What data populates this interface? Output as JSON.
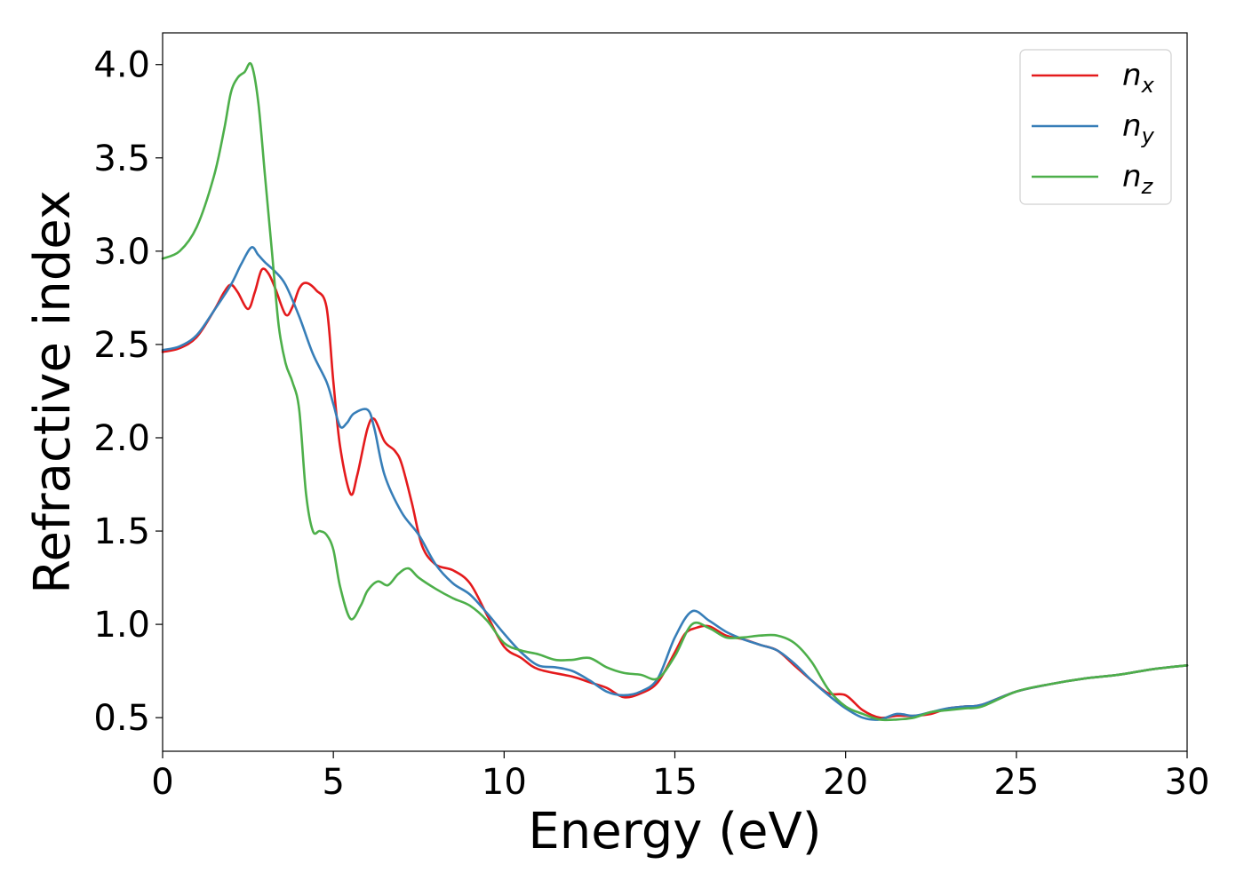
{
  "chart_data": {
    "type": "line",
    "xlabel": "Energy (eV)",
    "ylabel": "Refractive index",
    "xlim": [
      0,
      30
    ],
    "ylim": [
      0.32,
      4.17
    ],
    "xticks": [
      0,
      5,
      10,
      15,
      20,
      25,
      30
    ],
    "xtick_labels": [
      "0",
      "5",
      "10",
      "15",
      "20",
      "25",
      "30"
    ],
    "yticks": [
      0.5,
      1.0,
      1.5,
      2.0,
      2.5,
      3.0,
      3.5,
      4.0
    ],
    "ytick_labels": [
      "0.5",
      "1.0",
      "1.5",
      "2.0",
      "2.5",
      "3.0",
      "3.5",
      "4.0"
    ],
    "grid": false,
    "legend_position": "top-right",
    "series": [
      {
        "name": "n_x",
        "label_base": "n",
        "label_sub": "x",
        "color": "#e41a1c",
        "x": [
          0,
          0.5,
          1.0,
          1.5,
          1.8,
          2.0,
          2.2,
          2.5,
          2.7,
          2.9,
          3.1,
          3.3,
          3.6,
          3.8,
          4.0,
          4.2,
          4.5,
          4.8,
          5.0,
          5.2,
          5.5,
          5.7,
          6.0,
          6.2,
          6.5,
          6.8,
          7.0,
          7.3,
          7.6,
          8.0,
          8.5,
          9.0,
          9.5,
          10.0,
          10.5,
          11.0,
          12.0,
          12.5,
          13.0,
          13.5,
          14.0,
          14.5,
          15.0,
          15.3,
          15.6,
          16.0,
          16.5,
          17.0,
          17.5,
          18.0,
          18.5,
          19.0,
          19.5,
          20.0,
          20.5,
          21.0,
          21.5,
          22.0,
          22.5,
          23.0,
          23.5,
          24.0,
          25.0,
          26.0,
          27.0,
          28.0,
          29.0,
          30.0
        ],
        "y": [
          2.46,
          2.48,
          2.54,
          2.68,
          2.78,
          2.82,
          2.78,
          2.69,
          2.78,
          2.9,
          2.88,
          2.8,
          2.66,
          2.7,
          2.8,
          2.83,
          2.79,
          2.7,
          2.3,
          1.95,
          1.7,
          1.8,
          2.05,
          2.1,
          1.98,
          1.93,
          1.86,
          1.65,
          1.42,
          1.32,
          1.29,
          1.22,
          1.05,
          0.88,
          0.82,
          0.76,
          0.72,
          0.69,
          0.66,
          0.61,
          0.63,
          0.69,
          0.85,
          0.95,
          0.98,
          0.99,
          0.94,
          0.92,
          0.89,
          0.86,
          0.78,
          0.7,
          0.63,
          0.62,
          0.54,
          0.5,
          0.51,
          0.51,
          0.52,
          0.55,
          0.56,
          0.57,
          0.64,
          0.68,
          0.71,
          0.73,
          0.76,
          0.78
        ]
      },
      {
        "name": "n_y",
        "label_base": "n",
        "label_sub": "y",
        "color": "#377eb8",
        "x": [
          0,
          0.5,
          1.0,
          1.5,
          2.0,
          2.3,
          2.6,
          2.8,
          3.0,
          3.3,
          3.6,
          4.0,
          4.4,
          4.8,
          5.0,
          5.2,
          5.4,
          5.6,
          6.0,
          6.2,
          6.5,
          7.0,
          7.5,
          8.0,
          8.5,
          9.0,
          9.5,
          10.0,
          10.5,
          11.0,
          11.5,
          12.0,
          12.5,
          13.0,
          13.5,
          14.0,
          14.5,
          15.0,
          15.5,
          16.0,
          16.5,
          17.0,
          17.5,
          18.0,
          18.5,
          19.0,
          19.5,
          20.0,
          20.5,
          21.0,
          21.5,
          22.0,
          22.5,
          23.0,
          23.5,
          24.0,
          25.0,
          26.0,
          27.0,
          28.0,
          29.0,
          30.0
        ],
        "y": [
          2.47,
          2.49,
          2.55,
          2.68,
          2.82,
          2.93,
          3.02,
          2.98,
          2.94,
          2.89,
          2.82,
          2.65,
          2.45,
          2.3,
          2.18,
          2.06,
          2.08,
          2.13,
          2.15,
          2.05,
          1.8,
          1.6,
          1.48,
          1.32,
          1.22,
          1.16,
          1.06,
          0.95,
          0.85,
          0.78,
          0.77,
          0.75,
          0.7,
          0.64,
          0.62,
          0.64,
          0.71,
          0.93,
          1.07,
          1.02,
          0.96,
          0.92,
          0.89,
          0.86,
          0.79,
          0.7,
          0.62,
          0.55,
          0.5,
          0.49,
          0.52,
          0.51,
          0.53,
          0.55,
          0.56,
          0.57,
          0.64,
          0.68,
          0.71,
          0.73,
          0.76,
          0.78
        ]
      },
      {
        "name": "n_z",
        "label_base": "n",
        "label_sub": "z",
        "color": "#4daf4a",
        "x": [
          0,
          0.5,
          1.0,
          1.5,
          1.8,
          2.0,
          2.2,
          2.4,
          2.6,
          2.8,
          3.0,
          3.2,
          3.4,
          3.6,
          3.8,
          4.0,
          4.2,
          4.4,
          4.6,
          4.8,
          5.0,
          5.2,
          5.5,
          5.8,
          6.0,
          6.3,
          6.6,
          6.9,
          7.2,
          7.5,
          8.0,
          8.5,
          9.0,
          9.5,
          10.0,
          10.5,
          11.0,
          11.5,
          12.0,
          12.5,
          13.0,
          13.5,
          14.0,
          14.5,
          15.0,
          15.5,
          16.0,
          16.5,
          17.0,
          17.5,
          18.0,
          18.5,
          19.0,
          19.5,
          20.0,
          20.5,
          21.0,
          21.5,
          22.0,
          22.5,
          23.0,
          23.5,
          24.0,
          25.0,
          26.0,
          27.0,
          28.0,
          29.0,
          30.0
        ],
        "y": [
          2.96,
          3.0,
          3.13,
          3.4,
          3.65,
          3.85,
          3.93,
          3.96,
          4.0,
          3.8,
          3.4,
          3.0,
          2.6,
          2.4,
          2.3,
          2.15,
          1.7,
          1.5,
          1.5,
          1.48,
          1.4,
          1.2,
          1.03,
          1.1,
          1.18,
          1.23,
          1.21,
          1.27,
          1.3,
          1.25,
          1.19,
          1.14,
          1.1,
          1.02,
          0.9,
          0.86,
          0.84,
          0.81,
          0.81,
          0.82,
          0.77,
          0.74,
          0.73,
          0.71,
          0.83,
          1.0,
          0.98,
          0.93,
          0.93,
          0.94,
          0.94,
          0.9,
          0.8,
          0.65,
          0.56,
          0.52,
          0.49,
          0.49,
          0.5,
          0.53,
          0.54,
          0.55,
          0.56,
          0.64,
          0.68,
          0.71,
          0.73,
          0.76,
          0.78
        ]
      }
    ]
  }
}
